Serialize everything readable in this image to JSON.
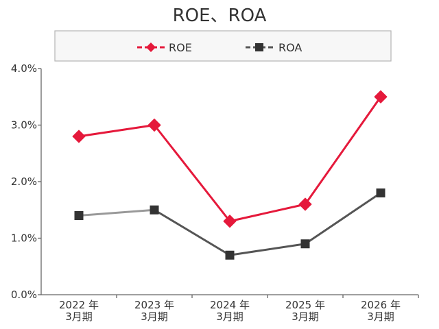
{
  "chart_data": {
    "type": "line",
    "title": "ROE、ROA",
    "categories": [
      [
        "2022 年",
        "3月期"
      ],
      [
        "2023 年",
        "3月期"
      ],
      [
        "2024 年",
        "3月期"
      ],
      [
        "2025 年",
        "3月期"
      ],
      [
        "2026 年",
        "3月期"
      ]
    ],
    "y_ticks": [
      "0.0%",
      "1.0%",
      "2.0%",
      "3.0%",
      "4.0%"
    ],
    "ylim": [
      0,
      4
    ],
    "grid": false,
    "legend_position": "top",
    "series": [
      {
        "name": "ROE",
        "values": [
          2.8,
          3.0,
          1.3,
          1.6,
          3.5
        ],
        "color": "#e5193b",
        "marker": "diamond"
      },
      {
        "name": "ROA",
        "values": [
          1.4,
          1.5,
          0.7,
          0.9,
          1.8
        ],
        "color": "#555555",
        "first_segment_color": "#999999",
        "marker": "square"
      }
    ]
  }
}
